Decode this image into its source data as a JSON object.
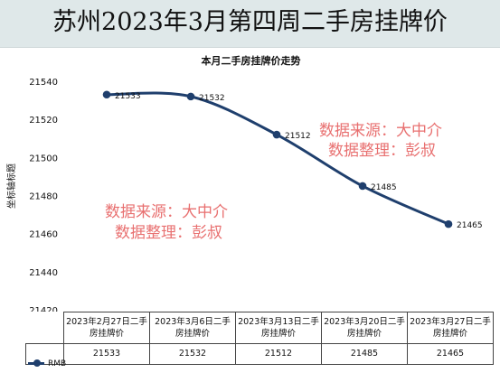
{
  "banner": {
    "title": "苏州2023年3月第四周二手房挂牌价"
  },
  "watermark": {
    "line1": "数据来源：大中介",
    "line2": "数据整理：彭叔"
  },
  "chart_data": {
    "type": "line",
    "title": "本月二手房挂牌价走势",
    "xlabel": "",
    "ylabel": "坐标轴标题",
    "categories": [
      "2023年2月27日二手房挂牌价",
      "2023年3月6日二手房挂牌价",
      "2023年3月13日二手房挂牌价",
      "2023年3月20日二手房挂牌价",
      "2023年3月27日二手房挂牌价"
    ],
    "series": [
      {
        "name": "RMB",
        "values": [
          21533,
          21532,
          21512,
          21485,
          21465
        ],
        "color": "#1f3f6d"
      }
    ],
    "ylim": [
      21420,
      21540
    ],
    "yticks": [
      21420,
      21440,
      21460,
      21480,
      21500,
      21520,
      21540
    ],
    "grid": false,
    "legend": "table-left",
    "data_table": true
  }
}
